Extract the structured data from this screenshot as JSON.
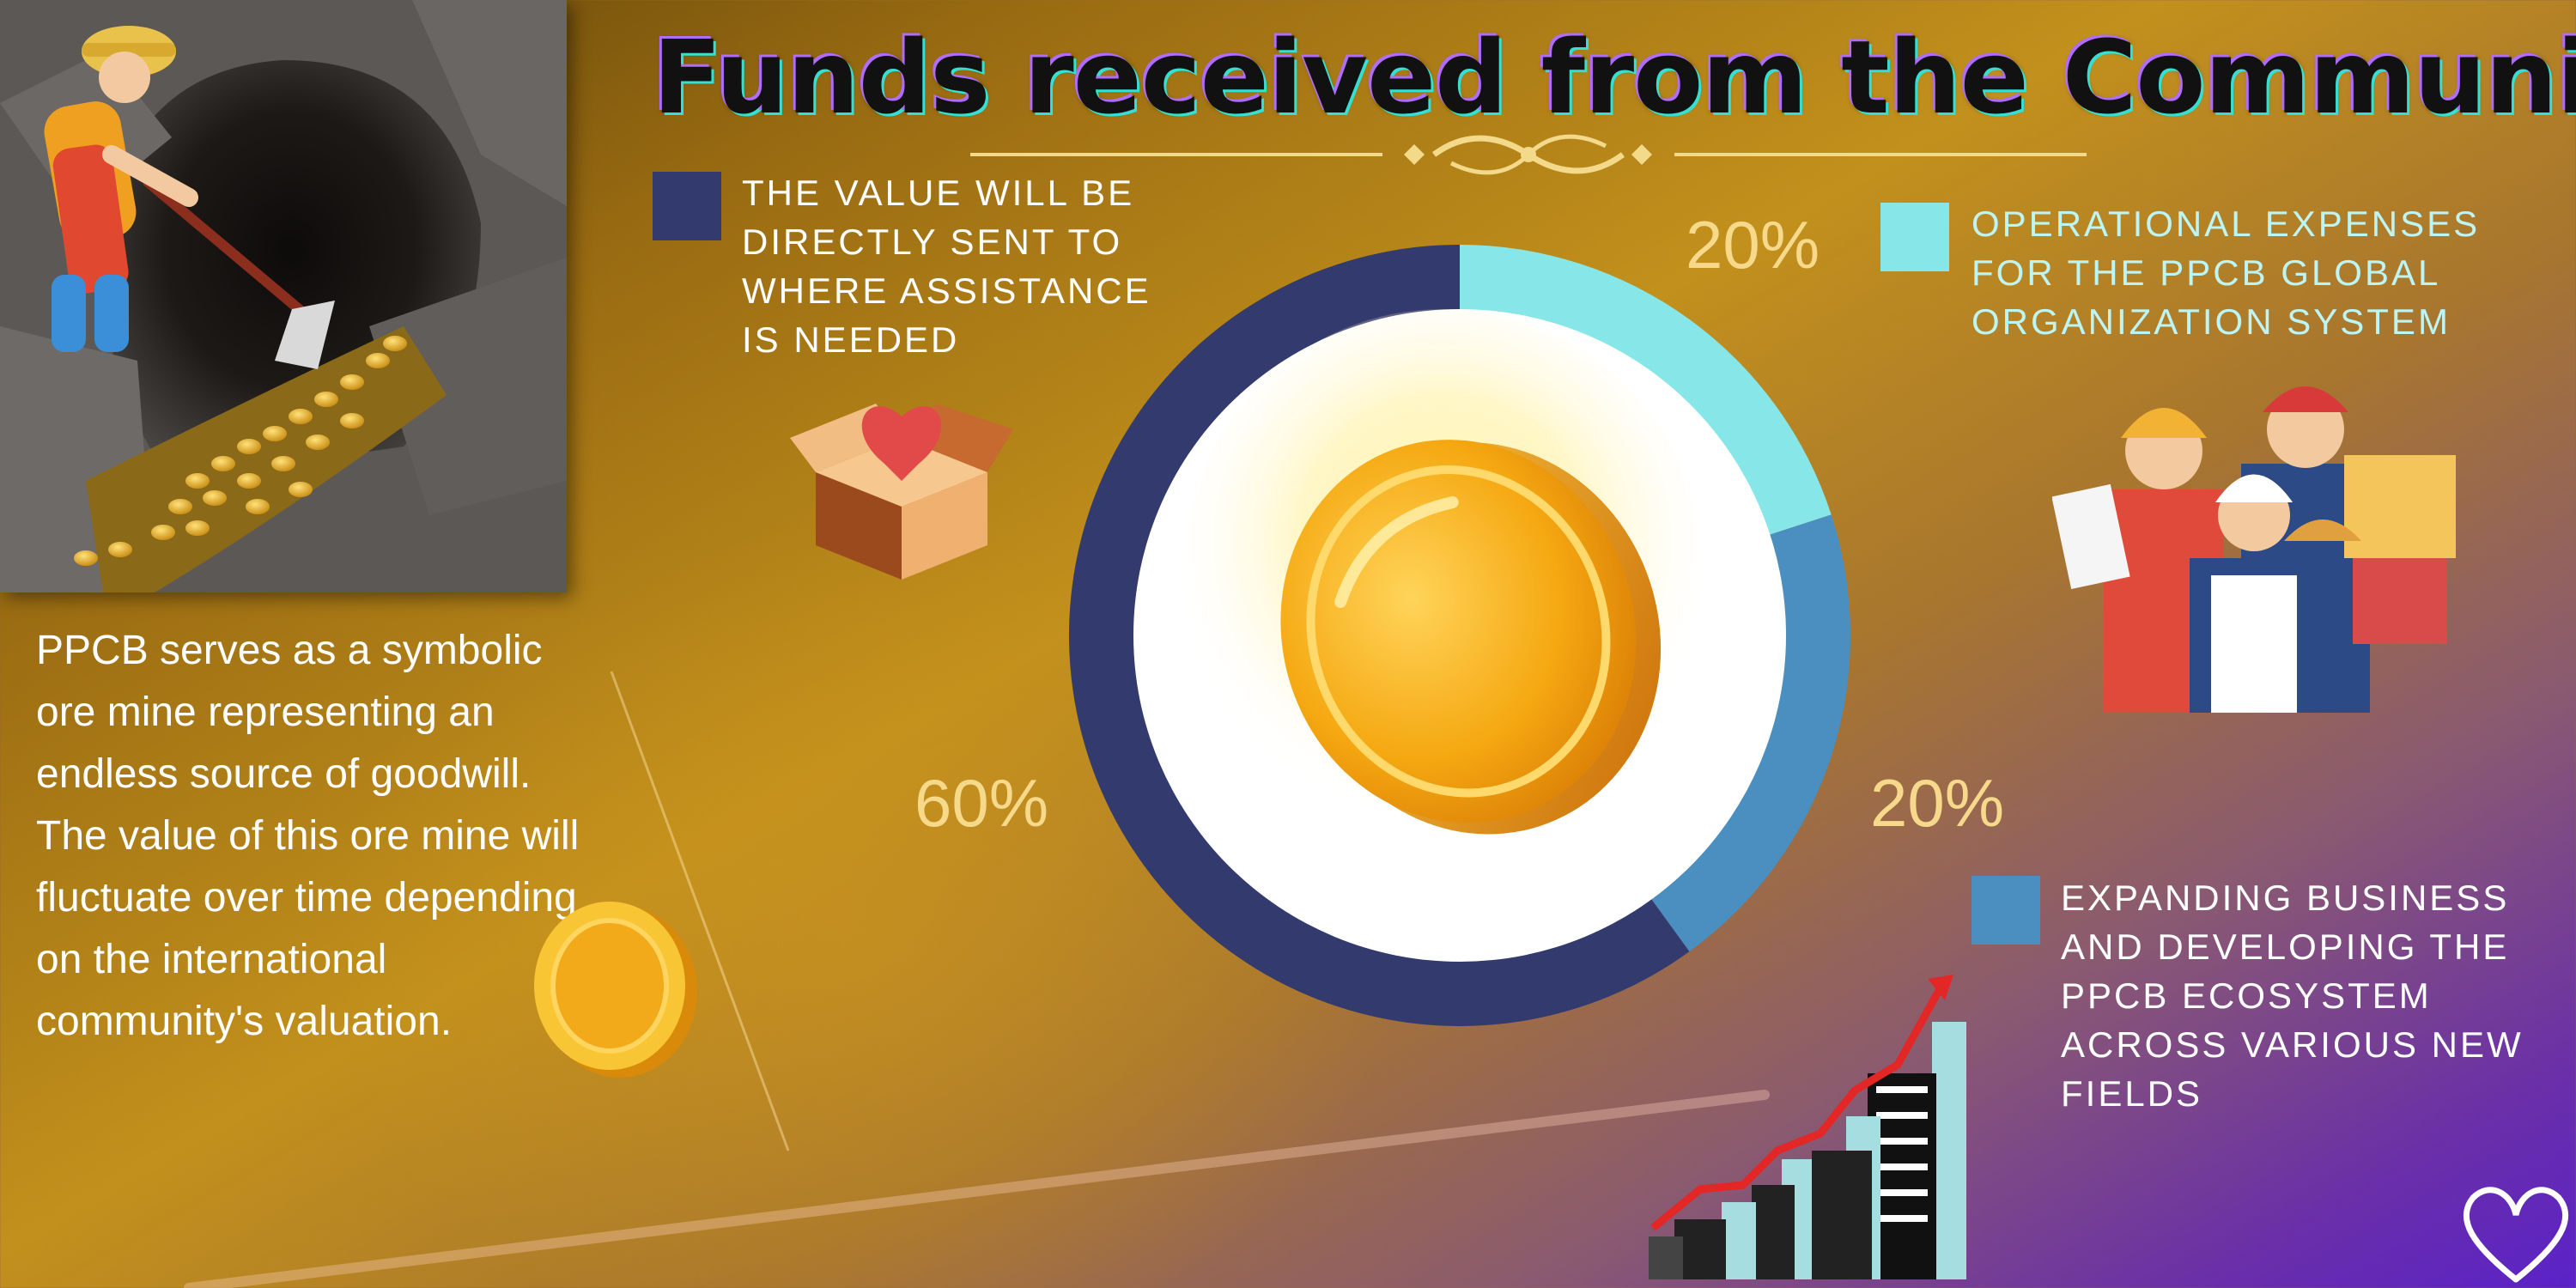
{
  "title": "Funds received from the Community",
  "description": "PPCB serves as a symbolic ore mine representing an endless source of goodwill. The value of this ore mine will fluctuate over time depending on the international community's valuation.",
  "legend": {
    "assistance": {
      "text": "THE VALUE WILL BE DIRECTLY SENT TO WHERE ASSISTANCE IS NEEDED",
      "color": "#333a6e"
    },
    "operational": {
      "text": "OPERATIONAL EXPENSES FOR THE PPCB GLOBAL ORGANIZATION SYSTEM",
      "color": "#86e6e8"
    },
    "expanding": {
      "text": "EXPANDING BUSINESS AND DEVELOPING THE PPCB ECOSYSTEM ACROSS VARIOUS NEW FIELDS",
      "color": "#4a8fc0"
    }
  },
  "chart_data": {
    "type": "pie",
    "title": "Funds received from the Community",
    "slices": [
      {
        "label": "THE VALUE WILL BE DIRECTLY SENT TO WHERE ASSISTANCE IS NEEDED",
        "value": 60,
        "display": "60%",
        "color": "#333a6e"
      },
      {
        "label": "OPERATIONAL EXPENSES FOR THE PPCB GLOBAL ORGANIZATION SYSTEM",
        "value": 20,
        "display": "20%",
        "color": "#86e6e8"
      },
      {
        "label": "EXPANDING BUSINESS AND DEVELOPING THE PPCB ECOSYSTEM ACROSS VARIOUS NEW FIELDS",
        "value": 20,
        "display": "20%",
        "color": "#4a8fc0"
      }
    ],
    "donut": true,
    "legend": "around-chart"
  },
  "labels": {
    "assistance_pct": "60%",
    "operational_pct": "20%",
    "expanding_pct": "20%"
  },
  "colors": {
    "accent_gold": "#f6d98a",
    "coin": "#f5b21a",
    "ring_inner": "#ffffff"
  }
}
